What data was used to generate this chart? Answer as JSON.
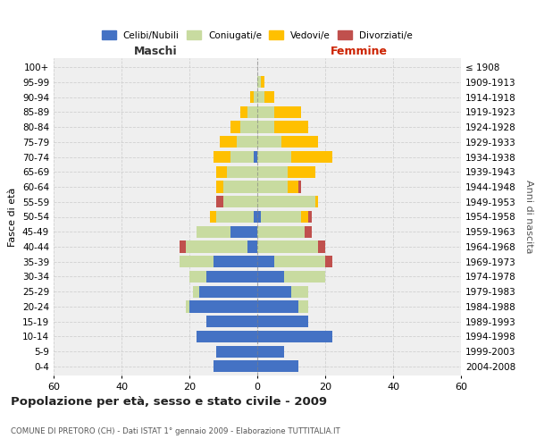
{
  "age_groups": [
    "0-4",
    "5-9",
    "10-14",
    "15-19",
    "20-24",
    "25-29",
    "30-34",
    "35-39",
    "40-44",
    "45-49",
    "50-54",
    "55-59",
    "60-64",
    "65-69",
    "70-74",
    "75-79",
    "80-84",
    "85-89",
    "90-94",
    "95-99",
    "100+"
  ],
  "birth_years": [
    "2004-2008",
    "1999-2003",
    "1994-1998",
    "1989-1993",
    "1984-1988",
    "1979-1983",
    "1974-1978",
    "1969-1973",
    "1964-1968",
    "1959-1963",
    "1954-1958",
    "1949-1953",
    "1944-1948",
    "1939-1943",
    "1934-1938",
    "1929-1933",
    "1924-1928",
    "1919-1923",
    "1914-1918",
    "1909-1913",
    "≤ 1908"
  ],
  "maschi": {
    "celibe": [
      13,
      12,
      18,
      15,
      20,
      17,
      15,
      13,
      3,
      8,
      1,
      0,
      0,
      0,
      1,
      0,
      0,
      0,
      0,
      0,
      0
    ],
    "coniugato": [
      0,
      0,
      0,
      0,
      1,
      2,
      5,
      10,
      18,
      10,
      11,
      10,
      10,
      9,
      7,
      6,
      5,
      3,
      1,
      0,
      0
    ],
    "vedovo": [
      0,
      0,
      0,
      0,
      0,
      0,
      0,
      0,
      0,
      0,
      2,
      0,
      2,
      3,
      5,
      5,
      3,
      2,
      1,
      0,
      0
    ],
    "divorziato": [
      0,
      0,
      0,
      0,
      0,
      0,
      0,
      0,
      2,
      0,
      0,
      2,
      0,
      0,
      0,
      0,
      0,
      0,
      0,
      0,
      0
    ]
  },
  "femmine": {
    "nubile": [
      12,
      8,
      22,
      15,
      12,
      10,
      8,
      5,
      0,
      0,
      1,
      0,
      0,
      0,
      0,
      0,
      0,
      0,
      0,
      0,
      0
    ],
    "coniugata": [
      0,
      0,
      0,
      0,
      3,
      5,
      12,
      15,
      18,
      14,
      12,
      17,
      9,
      9,
      10,
      7,
      5,
      5,
      2,
      1,
      0
    ],
    "vedova": [
      0,
      0,
      0,
      0,
      0,
      0,
      0,
      0,
      0,
      0,
      2,
      1,
      3,
      8,
      12,
      11,
      10,
      8,
      3,
      1,
      0
    ],
    "divorziata": [
      0,
      0,
      0,
      0,
      0,
      0,
      0,
      2,
      2,
      2,
      1,
      0,
      1,
      0,
      0,
      0,
      0,
      0,
      0,
      0,
      0
    ]
  },
  "colors": {
    "celibe": "#4472C4",
    "coniugato": "#c8dba0",
    "vedovo": "#ffc000",
    "divorziato": "#c0504d"
  },
  "title": "Popolazione per età, sesso e stato civile - 2009",
  "subtitle": "COMUNE DI PRETORO (CH) - Dati ISTAT 1° gennaio 2009 - Elaborazione TUTTITALIA.IT",
  "xlabel_left": "Maschi",
  "xlabel_right": "Femmine",
  "ylabel_left": "Fasce di età",
  "ylabel_right": "Anni di nascita",
  "xlim": 60,
  "bg_color": "#ffffff",
  "plot_bg": "#efefef",
  "grid_color": "#d0d0d0",
  "legend_labels": [
    "Celibi/Nubili",
    "Coniugati/e",
    "Vedovi/e",
    "Divorziati/e"
  ]
}
